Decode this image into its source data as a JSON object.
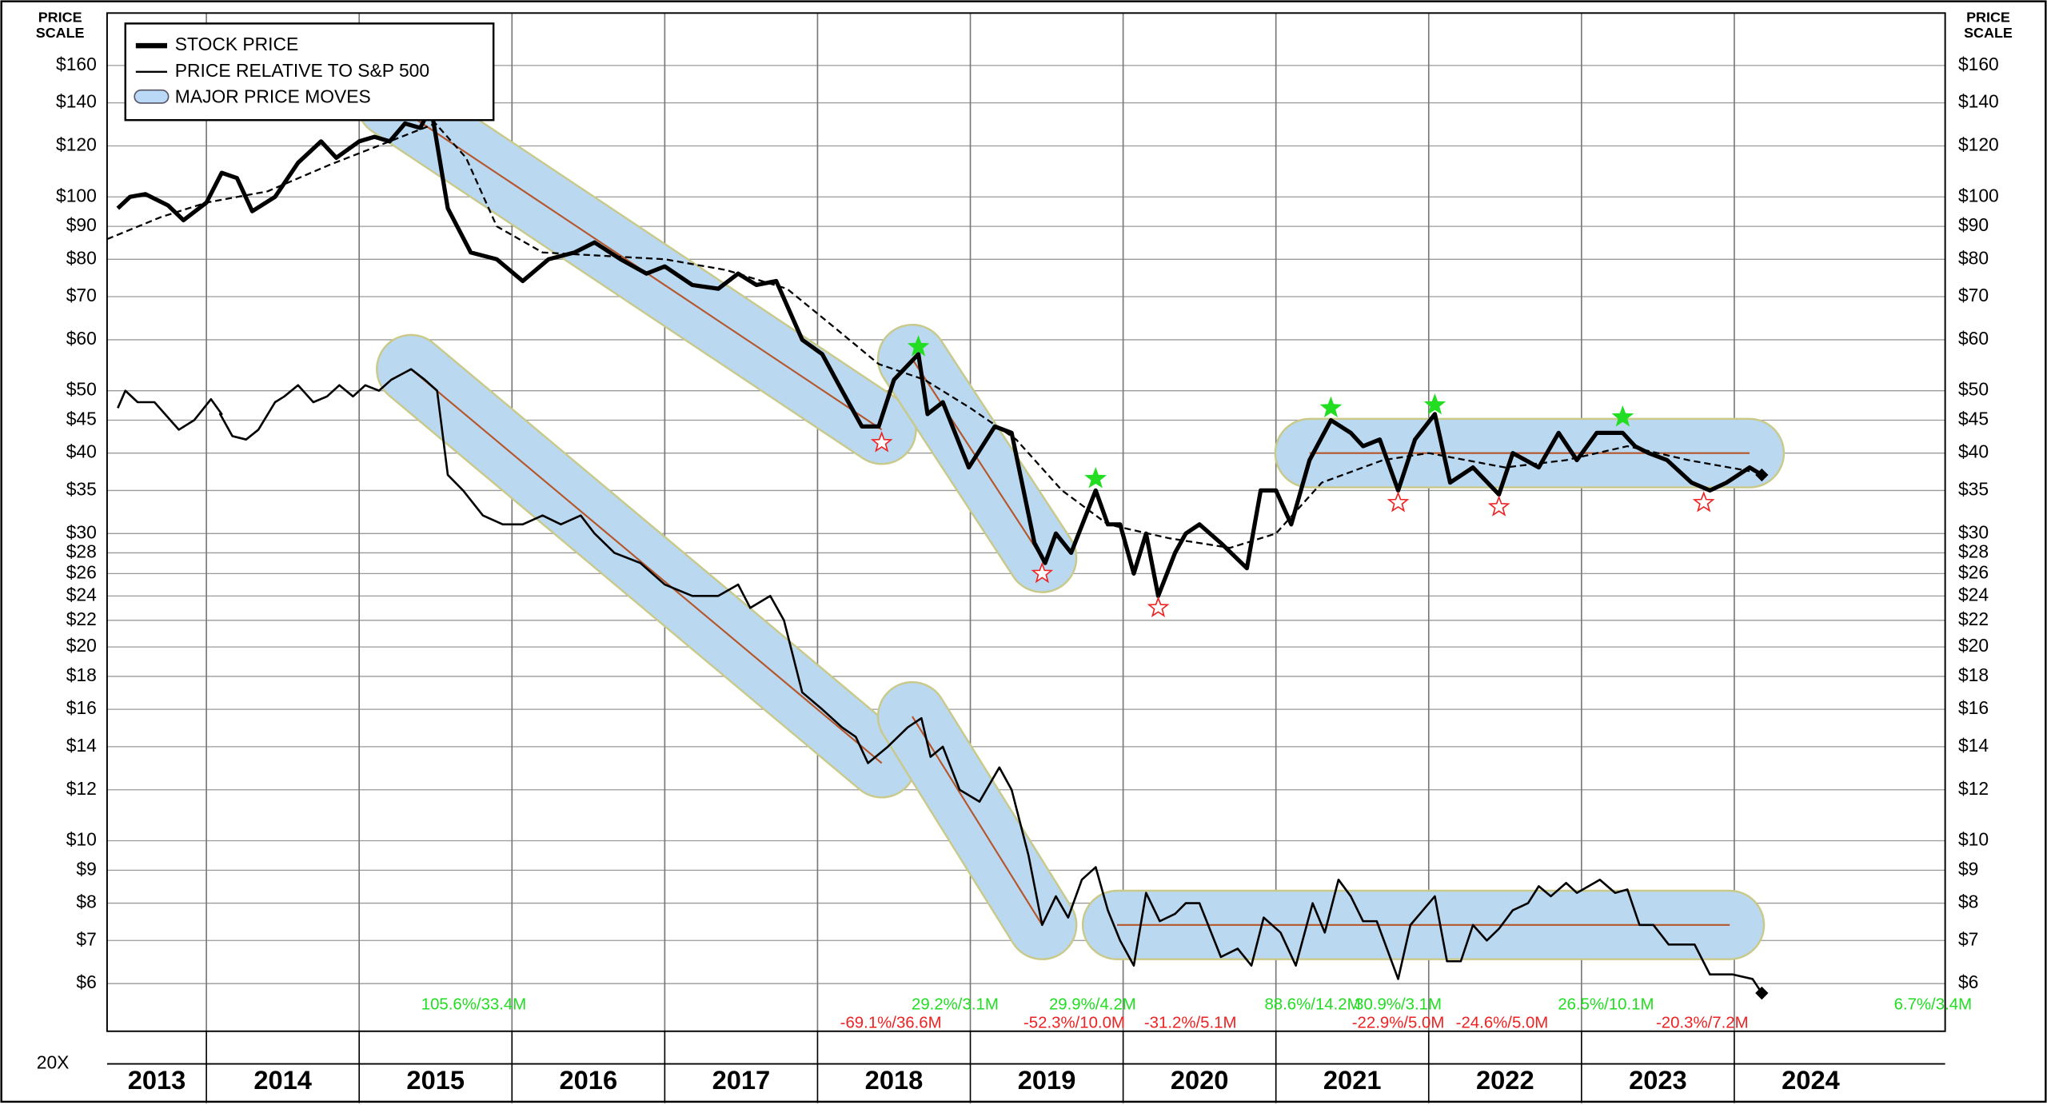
{
  "chart_data": {
    "type": "line",
    "log_scale": true,
    "grid": true,
    "ylabel": [
      "PRICE",
      "SCALE"
    ],
    "footnote": "20X",
    "xlim": [
      2013.35,
      2025.38
    ],
    "xticks": [
      2013,
      2014,
      2015,
      2016,
      2017,
      2018,
      2019,
      2020,
      2021,
      2022,
      2023,
      2024
    ],
    "ylim": [
      5.06,
      193
    ],
    "yticks": [
      {
        "value": 160,
        "label": "$160"
      },
      {
        "value": 140,
        "label": "$140"
      },
      {
        "value": 120,
        "label": "$120"
      },
      {
        "value": 100,
        "label": "$100"
      },
      {
        "value": 90,
        "label": "$90"
      },
      {
        "value": 80,
        "label": "$80"
      },
      {
        "value": 70,
        "label": "$70"
      },
      {
        "value": 60,
        "label": "$60"
      },
      {
        "value": 50,
        "label": "$50"
      },
      {
        "value": 45,
        "label": "$45"
      },
      {
        "value": 40,
        "label": "$40"
      },
      {
        "value": 35,
        "label": "$35"
      },
      {
        "value": 30,
        "label": "$30"
      },
      {
        "value": 28,
        "label": "$28"
      },
      {
        "value": 26,
        "label": "$26"
      },
      {
        "value": 24,
        "label": "$24"
      },
      {
        "value": 22,
        "label": "$22"
      },
      {
        "value": 20,
        "label": "$20"
      },
      {
        "value": 18,
        "label": "$18"
      },
      {
        "value": 16,
        "label": "$16"
      },
      {
        "value": 14,
        "label": "$14"
      },
      {
        "value": 12,
        "label": "$12"
      },
      {
        "value": 10,
        "label": "$10"
      },
      {
        "value": 9,
        "label": "$9"
      },
      {
        "value": 8,
        "label": "$8"
      },
      {
        "value": 7,
        "label": "$7"
      },
      {
        "value": 6,
        "label": "$6"
      }
    ],
    "series": [
      {
        "name": "STOCK PRICE",
        "color": "#000000",
        "width": 3.2,
        "x": [
          2013.42,
          2013.5,
          2013.6,
          2013.75,
          2013.85,
          2014.0,
          2014.1,
          2014.2,
          2014.3,
          2014.45,
          2014.6,
          2014.75,
          2014.85,
          2015.0,
          2015.1,
          2015.2,
          2015.3,
          2015.4,
          2015.47,
          2015.58,
          2015.73,
          2015.9,
          2016.07,
          2016.24,
          2016.41,
          2016.54,
          2016.71,
          2016.88,
          2017.0,
          2017.18,
          2017.35,
          2017.48,
          2017.6,
          2017.73,
          2017.9,
          2018.03,
          2018.16,
          2018.29,
          2018.4,
          2018.5,
          2018.66,
          2018.72,
          2018.82,
          2018.99,
          2019.16,
          2019.27,
          2019.42,
          2019.49,
          2019.56,
          2019.66,
          2019.82,
          2019.9,
          2019.98,
          2020.07,
          2020.15,
          2020.23,
          2020.34,
          2020.41,
          2020.5,
          2020.64,
          2020.81,
          2020.9,
          2021.0,
          2021.1,
          2021.22,
          2021.36,
          2021.49,
          2021.57,
          2021.68,
          2021.8,
          2021.91,
          2022.04,
          2022.14,
          2022.29,
          2022.46,
          2022.55,
          2022.72,
          2022.85,
          2022.97,
          2023.1,
          2023.27,
          2023.35,
          2023.44,
          2023.56,
          2023.72,
          2023.84,
          2023.95,
          2024.1,
          2024.18
        ],
        "values": [
          96,
          100,
          101,
          97,
          92,
          98,
          109,
          107,
          95,
          100,
          113,
          122,
          115,
          122,
          124,
          122,
          130,
          128,
          138,
          96,
          82,
          80,
          74,
          80,
          82,
          85,
          80,
          76,
          78,
          73,
          72,
          76,
          73,
          74,
          60,
          57,
          50,
          44,
          44,
          52,
          57,
          46,
          48,
          38,
          44,
          43,
          29,
          27,
          30,
          28,
          35,
          31,
          31,
          26,
          30,
          24,
          28,
          30,
          31,
          29,
          26.5,
          35,
          35,
          31,
          39,
          45,
          43,
          41,
          42,
          35,
          42,
          46,
          36,
          38,
          34.5,
          40,
          38,
          43,
          39,
          43,
          43,
          41,
          40,
          39,
          36,
          35,
          36,
          38,
          37
        ]
      },
      {
        "name": "PRICE RELATIVE TO S&P 500",
        "color": "#000000",
        "width": 1.6,
        "x": [
          2013.42,
          2013.47,
          2013.55,
          2013.66,
          2013.82,
          2013.92,
          2014.03,
          2014.1,
          2014.09,
          2014.17,
          2014.26,
          2014.34,
          2014.45,
          2014.51,
          2014.6,
          2014.7,
          2014.79,
          2014.87,
          2014.96,
          2015.04,
          2015.13,
          2015.21,
          2015.34,
          2015.43,
          2015.51,
          2015.58,
          2015.68,
          2015.81,
          2015.94,
          2016.07,
          2016.2,
          2016.32,
          2016.45,
          2016.54,
          2016.67,
          2016.84,
          2017.0,
          2017.18,
          2017.35,
          2017.48,
          2017.56,
          2017.69,
          2017.78,
          2017.9,
          2018.03,
          2018.16,
          2018.25,
          2018.33,
          2018.46,
          2018.59,
          2018.68,
          2018.74,
          2018.82,
          2018.93,
          2019.06,
          2019.19,
          2019.27,
          2019.38,
          2019.47,
          2019.56,
          2019.64,
          2019.73,
          2019.82,
          2019.9,
          2019.98,
          2020.07,
          2020.15,
          2020.24,
          2020.34,
          2020.41,
          2020.5,
          2020.64,
          2020.75,
          2020.84,
          2020.92,
          2021.03,
          2021.13,
          2021.24,
          2021.32,
          2021.41,
          2021.49,
          2021.57,
          2021.66,
          2021.8,
          2021.88,
          2022.04,
          2022.12,
          2022.21,
          2022.29,
          2022.38,
          2022.46,
          2022.55,
          2022.65,
          2022.72,
          2022.8,
          2022.9,
          2022.97,
          2023.12,
          2023.22,
          2023.3,
          2023.38,
          2023.47,
          2023.57,
          2023.74,
          2023.84,
          2023.99,
          2024.12,
          2024.18
        ],
        "values": [
          47,
          50,
          48,
          48,
          43.5,
          45,
          48.5,
          46,
          46,
          42.5,
          42,
          43.5,
          48,
          49,
          51,
          48,
          49,
          51,
          49,
          51,
          50,
          52,
          54,
          52,
          50,
          37,
          35,
          32,
          31,
          31,
          32,
          31,
          32,
          30,
          28,
          27,
          25,
          24,
          24,
          25,
          23,
          24,
          22,
          17,
          16,
          15,
          14.5,
          13.2,
          14,
          15,
          15.5,
          13.5,
          14,
          12,
          11.5,
          13,
          12,
          9.5,
          7.4,
          8.2,
          7.6,
          8.7,
          9.1,
          7.8,
          7,
          6.4,
          8.3,
          7.5,
          7.7,
          8,
          8,
          6.6,
          6.8,
          6.4,
          7.6,
          7.2,
          6.4,
          8,
          7.2,
          8.7,
          8.2,
          7.5,
          7.5,
          6.1,
          7.4,
          8.2,
          6.5,
          6.5,
          7.4,
          7,
          7.3,
          7.8,
          8,
          8.5,
          8.2,
          8.6,
          8.3,
          8.7,
          8.3,
          8.4,
          7.4,
          7.4,
          6.9,
          6.9,
          6.2,
          6.2,
          6.1,
          5.8
        ]
      }
    ],
    "moving_average": {
      "color": "#000000",
      "x": [
        2013.35,
        2013.7,
        2014.0,
        2014.4,
        2014.8,
        2015.2,
        2015.5,
        2015.7,
        2015.9,
        2016.2,
        2016.6,
        2017.0,
        2017.4,
        2017.8,
        2018.1,
        2018.4,
        2018.7,
        2019.0,
        2019.3,
        2019.6,
        2019.9,
        2020.3,
        2020.7,
        2021.0,
        2021.3,
        2021.7,
        2022.0,
        2022.5,
        2022.9,
        2023.3,
        2023.7,
        2024.1
      ],
      "values": [
        86,
        93,
        98,
        102,
        112,
        122,
        130,
        115,
        90,
        82,
        81,
        80,
        77,
        72,
        63,
        55,
        52,
        47,
        42,
        35,
        31,
        29.5,
        28.5,
        30,
        36,
        39,
        40,
        38,
        39,
        41,
        39,
        37.5
      ]
    },
    "major_price_moves": {
      "name": "MAJOR PRICE MOVES",
      "fill": "#b9d9f6",
      "line_color": "#b5562a",
      "bands": [
        {
          "x": [
            2015.21,
            2018.42
          ],
          "values": [
            140,
            43.5
          ]
        },
        {
          "x": [
            2018.62,
            2019.47
          ],
          "values": [
            56,
            27.5
          ]
        },
        {
          "x": [
            2021.22,
            2024.1
          ],
          "values": [
            40,
            40
          ]
        },
        {
          "x": [
            2015.34,
            2018.42
          ],
          "values": [
            54,
            13.2
          ]
        },
        {
          "x": [
            2018.62,
            2019.47
          ],
          "values": [
            15.6,
            7.4
          ]
        },
        {
          "x": [
            2019.96,
            2023.97
          ],
          "values": [
            7.4,
            7.4
          ]
        }
      ]
    },
    "highs": {
      "color": "#22dd22",
      "x": [
        2018.66,
        2019.82,
        2021.36,
        2022.04,
        2023.27
      ],
      "values": [
        58.5,
        36.5,
        47,
        47.5,
        45.5
      ]
    },
    "lows": {
      "color": "#ee2222",
      "x": [
        2018.42,
        2019.47,
        2020.23,
        2021.8,
        2022.46,
        2023.8
      ],
      "values": [
        41.5,
        26,
        23,
        33.5,
        33,
        33.5
      ]
    },
    "annotations": {
      "gains": {
        "color": "#22dd22",
        "items": [
          {
            "text": "105.6%/33.4M",
            "x": 2015.75
          },
          {
            "text": "29.2%/3.1M",
            "x": 2018.9
          },
          {
            "text": "29.9%/4.2M",
            "x": 2019.8
          },
          {
            "text": "88.6%/14.2M",
            "x": 2021.24
          },
          {
            "text": "30.9%/3.1M",
            "x": 2021.8
          },
          {
            "text": "26.5%/10.1M",
            "x": 2023.16
          },
          {
            "text": "6.7%/3.4M",
            "x": 2025.3
          }
        ]
      },
      "losses": {
        "color": "#ee2222",
        "items": [
          {
            "text": "-69.1%/36.6M",
            "x": 2018.48
          },
          {
            "text": "-52.3%/10.0M",
            "x": 2019.68
          },
          {
            "text": "-31.2%/5.1M",
            "x": 2020.44
          },
          {
            "text": "-22.9%/5.0M",
            "x": 2021.8
          },
          {
            "text": "-24.6%/5.0M",
            "x": 2022.48
          },
          {
            "text": "-20.3%/7.2M",
            "x": 2023.79
          }
        ]
      }
    }
  }
}
